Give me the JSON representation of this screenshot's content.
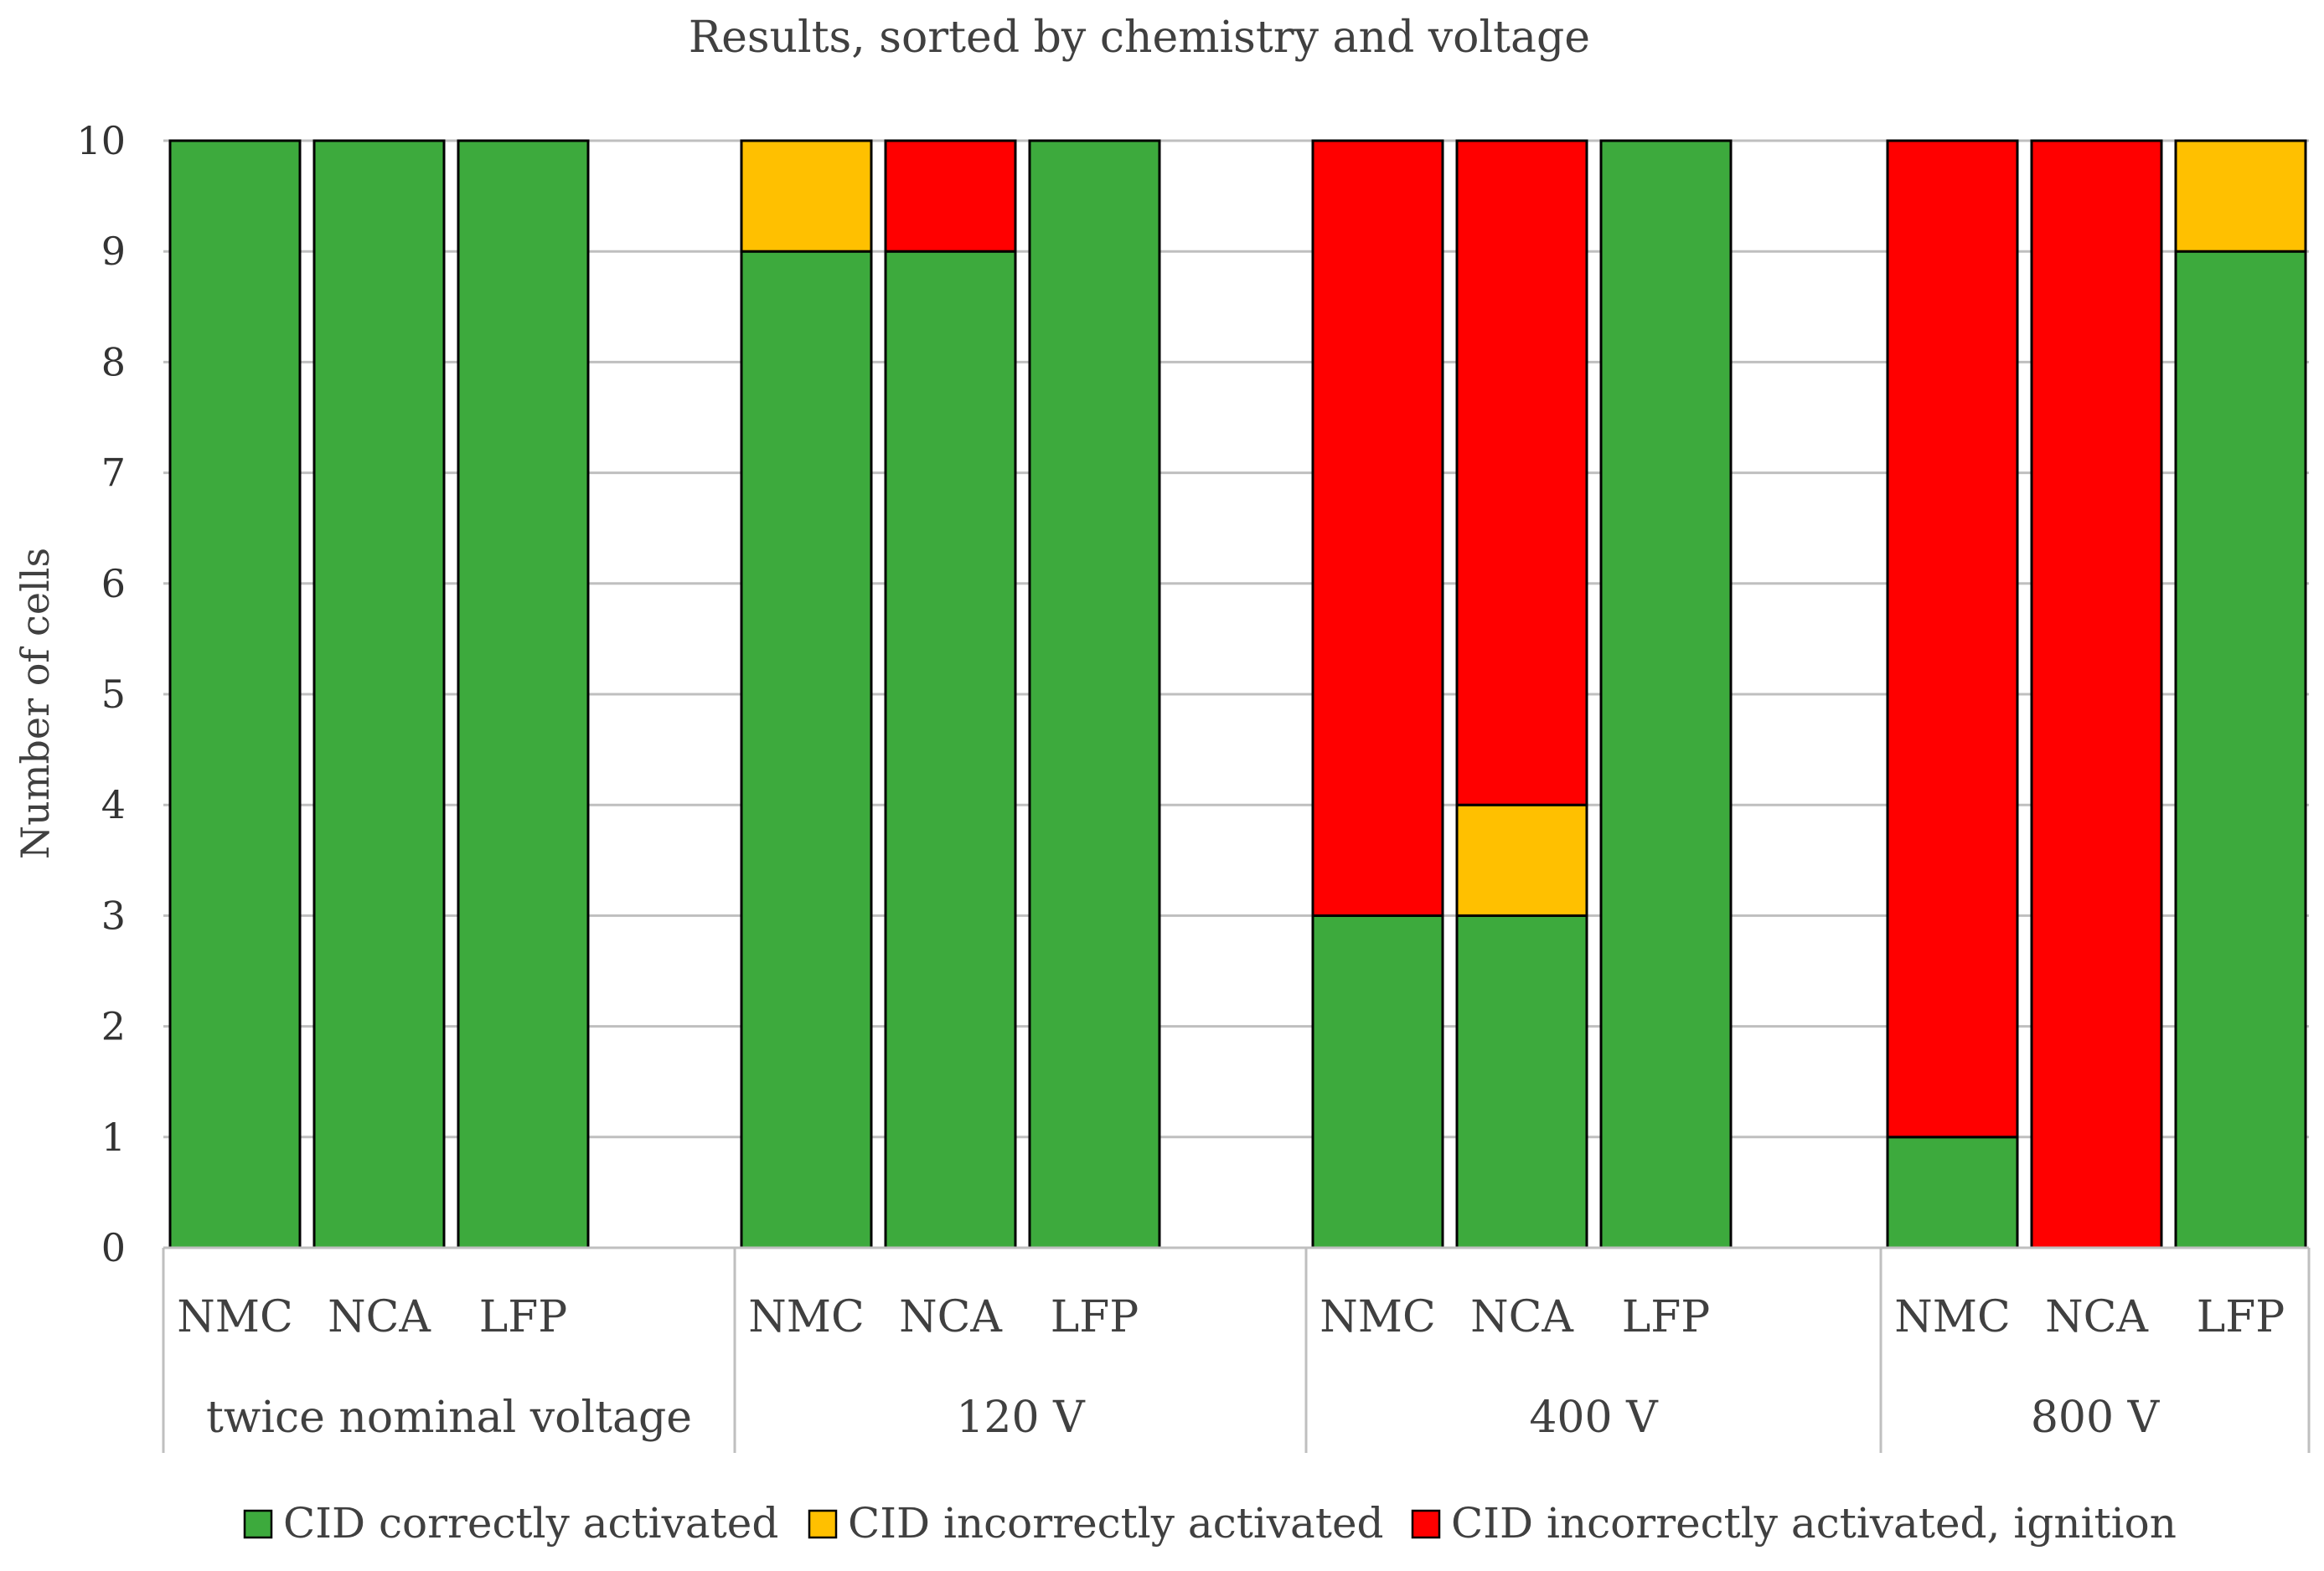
{
  "chart_data": {
    "type": "bar",
    "stacked": true,
    "title": "Results, sorted by chemistry and voltage",
    "xlabel": "",
    "ylabel": "Number of cells",
    "ylim": [
      0,
      10
    ],
    "yticks": [
      "0",
      "1",
      "2",
      "3",
      "4",
      "5",
      "6",
      "7",
      "8",
      "9",
      "10"
    ],
    "groups": [
      {
        "label": "twice nominal voltage",
        "categories": [
          "NMC",
          "NCA",
          "LFP"
        ]
      },
      {
        "label": "120 V",
        "categories": [
          "NMC",
          "NCA",
          "LFP"
        ]
      },
      {
        "label": "400 V",
        "categories": [
          "NMC",
          "NCA",
          "LFP"
        ]
      },
      {
        "label": "800 V",
        "categories": [
          "NMC",
          "NCA",
          "LFP"
        ]
      }
    ],
    "series": [
      {
        "name": "CID correctly activated",
        "color": "#3DAA3D",
        "values": [
          10,
          10,
          10,
          9,
          9,
          10,
          3,
          3,
          10,
          1,
          0,
          9
        ]
      },
      {
        "name": "CID incorrectly activated",
        "color": "#FFC000",
        "values": [
          0,
          0,
          0,
          1,
          0,
          0,
          0,
          1,
          0,
          0,
          0,
          1
        ]
      },
      {
        "name": "CID incorrectly activated, ignition",
        "color": "#FF0000",
        "values": [
          0,
          0,
          0,
          0,
          1,
          0,
          7,
          6,
          0,
          9,
          10,
          0
        ]
      }
    ],
    "legend_position": "bottom",
    "grid": true
  }
}
